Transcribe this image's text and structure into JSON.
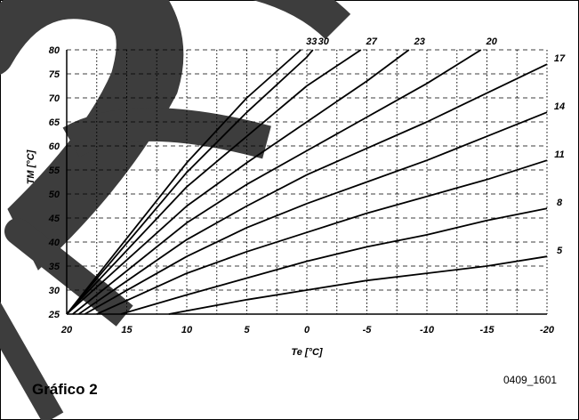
{
  "caption": "Gráfico 2",
  "code": "0409_1601",
  "colors": {
    "watermark": "#3d3d3d",
    "line": "#000000",
    "grid": "#000000"
  },
  "chart_data": {
    "type": "line",
    "xlabel": "Te [°C]",
    "ylabel": "TM [°C]",
    "xlim": [
      20,
      -20
    ],
    "ylim": [
      25,
      80
    ],
    "xticks": [
      20,
      15,
      10,
      5,
      0,
      -5,
      -10,
      -15,
      -20
    ],
    "yticks": [
      25,
      30,
      35,
      40,
      45,
      50,
      55,
      60,
      65,
      70,
      75,
      80
    ],
    "xtick_labels": [
      "20",
      "15",
      "10",
      "5",
      "0",
      "-5",
      "-10",
      "-15",
      "-20"
    ],
    "ytick_labels": [
      "25",
      "30",
      "35",
      "40",
      "45",
      "50",
      "55",
      "60",
      "65",
      "70",
      "75",
      "80"
    ],
    "grid": true,
    "series": [
      {
        "name": "5",
        "points": [
          [
            11.5,
            25
          ],
          [
            5,
            28
          ],
          [
            0,
            30
          ],
          [
            -5,
            32
          ],
          [
            -10,
            33.5
          ],
          [
            -15,
            35
          ],
          [
            -20,
            37
          ]
        ]
      },
      {
        "name": "8",
        "points": [
          [
            15.5,
            25
          ],
          [
            10,
            29
          ],
          [
            5,
            32.5
          ],
          [
            0,
            36
          ],
          [
            -5,
            39
          ],
          [
            -10,
            41.5
          ],
          [
            -15,
            44.5
          ],
          [
            -20,
            47
          ]
        ]
      },
      {
        "name": "11",
        "points": [
          [
            17.5,
            25
          ],
          [
            10,
            33.5
          ],
          [
            5,
            38
          ],
          [
            0,
            42
          ],
          [
            -5,
            46
          ],
          [
            -10,
            49.5
          ],
          [
            -15,
            53
          ],
          [
            -20,
            57
          ]
        ]
      },
      {
        "name": "14",
        "points": [
          [
            18.5,
            25
          ],
          [
            10,
            37
          ],
          [
            5,
            43
          ],
          [
            0,
            48
          ],
          [
            -5,
            52.5
          ],
          [
            -10,
            57
          ],
          [
            -15,
            62
          ],
          [
            -20,
            67
          ]
        ]
      },
      {
        "name": "17",
        "points": [
          [
            19,
            25
          ],
          [
            10,
            40.5
          ],
          [
            5,
            47.5
          ],
          [
            0,
            54
          ],
          [
            -5,
            59.5
          ],
          [
            -10,
            65
          ],
          [
            -15,
            71
          ],
          [
            -20,
            77
          ]
        ]
      },
      {
        "name": "20",
        "points": [
          [
            19.5,
            25
          ],
          [
            10,
            44
          ],
          [
            5,
            52
          ],
          [
            0,
            59
          ],
          [
            -5,
            66
          ],
          [
            -10,
            73
          ],
          [
            -14.5,
            80
          ]
        ]
      },
      {
        "name": "23",
        "points": [
          [
            20,
            25
          ],
          [
            10,
            47.5
          ],
          [
            5,
            56.5
          ],
          [
            0,
            65
          ],
          [
            -5,
            73.5
          ],
          [
            -8.5,
            80
          ]
        ]
      },
      {
        "name": "27",
        "points": [
          [
            20,
            25
          ],
          [
            10,
            51.5
          ],
          [
            5,
            62
          ],
          [
            0,
            72.5
          ],
          [
            -4.5,
            80
          ]
        ]
      },
      {
        "name": "30",
        "points": [
          [
            20,
            25
          ],
          [
            10,
            54.5
          ],
          [
            5,
            67
          ],
          [
            0,
            78.5
          ],
          [
            -0.5,
            80
          ]
        ]
      },
      {
        "name": "33",
        "points": [
          [
            20,
            25
          ],
          [
            10,
            56.5
          ],
          [
            5,
            70
          ],
          [
            0.5,
            80
          ]
        ]
      }
    ]
  }
}
